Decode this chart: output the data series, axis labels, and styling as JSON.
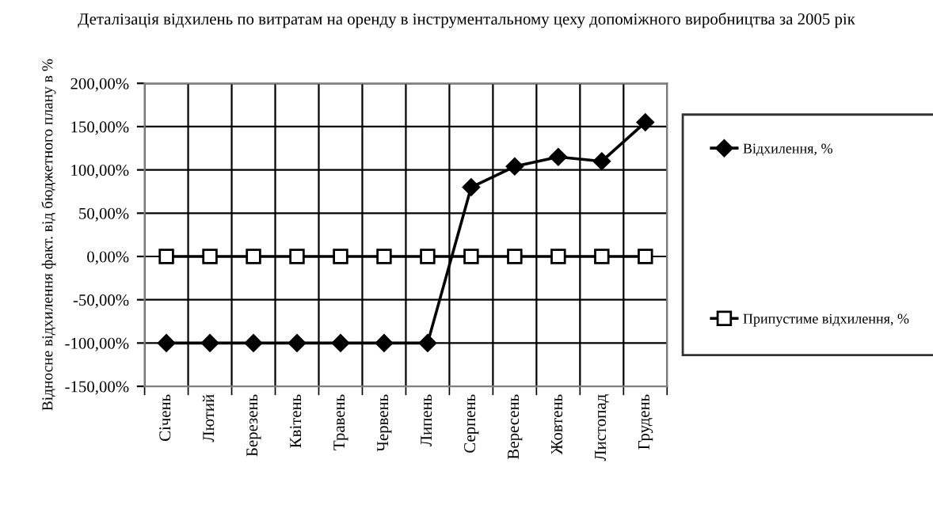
{
  "chart_data": {
    "type": "line",
    "title": "Деталізація відхилень по витратам на оренду в інструментальному цеху допоміжного виробництва за 2005 рік",
    "ylabel": "Відносне відхилення факт. від бюджетного плану в %",
    "categories": [
      "Січень",
      "Лютий",
      "Березень",
      "Квітень",
      "Травень",
      "Червень",
      "Липень",
      "Серпень",
      "Вересень",
      "Жовтень",
      "Листопад",
      "Грудень"
    ],
    "series": [
      {
        "name": "Відхилення, %",
        "color": "#000000",
        "marker": "diamond",
        "values": [
          -100,
          -100,
          -100,
          -100,
          -100,
          -100,
          -100,
          80,
          104,
          115,
          110,
          155
        ]
      },
      {
        "name": "Припустиме відхилення, %",
        "color": "#000000",
        "marker": "square",
        "values": [
          0,
          0,
          0,
          0,
          0,
          0,
          0,
          0,
          0,
          0,
          0,
          0
        ]
      }
    ],
    "ylim": [
      -150,
      200
    ],
    "yticks": [
      {
        "value": -150,
        "label": "-150,00%"
      },
      {
        "value": -100,
        "label": "-100,00%"
      },
      {
        "value": -50,
        "label": "-50,00%"
      },
      {
        "value": 0,
        "label": "0,00%"
      },
      {
        "value": 50,
        "label": "50,00%"
      },
      {
        "value": 100,
        "label": "100,00%"
      },
      {
        "value": 150,
        "label": "150,00%"
      },
      {
        "value": 200,
        "label": "200,00%"
      }
    ],
    "grid": true,
    "legend": "right",
    "line_style": "solid"
  }
}
